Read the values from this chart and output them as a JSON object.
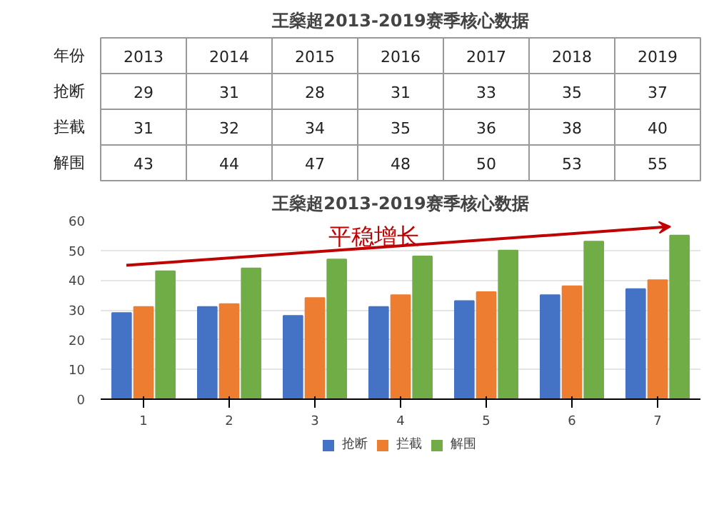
{
  "chart_data": {
    "type": "bar",
    "title": "王燊超2013-2019赛季核心数据",
    "subtitle": "王燊超2013-2019赛季核心数据",
    "categories": [
      "1",
      "2",
      "3",
      "4",
      "5",
      "6",
      "7"
    ],
    "series": [
      {
        "name": "抢断",
        "color": "#4472c4",
        "values": [
          29,
          31,
          28,
          31,
          33,
          35,
          37
        ]
      },
      {
        "name": "拦截",
        "color": "#ed7d31",
        "values": [
          31,
          32,
          34,
          35,
          36,
          38,
          40
        ]
      },
      {
        "name": "解围",
        "color": "#70ad47",
        "values": [
          43,
          44,
          47,
          48,
          50,
          53,
          55
        ]
      }
    ],
    "data_labels": true,
    "ylim": [
      0,
      60
    ],
    "yticks": [
      0,
      10,
      20,
      30,
      40,
      50,
      60
    ],
    "grid": "y",
    "legend": "bottom",
    "annotations": [
      "平稳增长",
      "年份",
      "2013",
      "2014",
      "2015",
      "2016",
      "2017",
      "2018",
      "2019"
    ]
  }
}
